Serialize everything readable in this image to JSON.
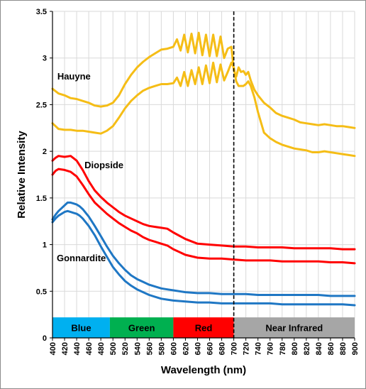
{
  "chart_data": {
    "type": "line",
    "xlabel": "Wavelength (nm)",
    "ylabel": "Relative Intensity",
    "xlim": [
      400,
      900
    ],
    "ylim": [
      0,
      3.5
    ],
    "x_ticks": [
      "400",
      "420",
      "440",
      "460",
      "480",
      "500",
      "520",
      "540",
      "560",
      "580",
      "600",
      "620",
      "640",
      "660",
      "680",
      "700",
      "720",
      "740",
      "760",
      "780",
      "800",
      "820",
      "840",
      "860",
      "880",
      "900"
    ],
    "y_ticks": [
      "0",
      "0.5",
      "1",
      "1.5",
      "2",
      "2.5",
      "3",
      "3.5"
    ],
    "grid": "horizontal and vertical",
    "vertical_marker": {
      "x": 700,
      "style": "dashed"
    },
    "bands": [
      {
        "label": "Blue",
        "start": 400,
        "end": 495,
        "color": "#00b0f0",
        "text_color": "#000000"
      },
      {
        "label": "Green",
        "start": 495,
        "end": 600,
        "color": "#00b050",
        "text_color": "#000000"
      },
      {
        "label": "Red",
        "start": 600,
        "end": 700,
        "color": "#ff0000",
        "text_color": "#000000"
      },
      {
        "label": "Near Infrared",
        "start": 700,
        "end": 900,
        "color": "#a6a6a6",
        "text_color": "#000000"
      }
    ],
    "band_y_range": [
      0,
      0.22
    ],
    "annotations": [
      {
        "text": "Hauyne",
        "x": 408,
        "y": 2.77
      },
      {
        "text": "Diopside",
        "x": 453,
        "y": 1.82
      },
      {
        "text": "Gonnardite",
        "x": 407,
        "y": 0.82
      }
    ],
    "series": [
      {
        "color": "#f5bd16",
        "x": [
          400,
          410,
          420,
          430,
          440,
          450,
          460,
          470,
          480,
          490,
          500,
          510,
          520,
          530,
          540,
          550,
          560,
          570,
          580,
          590,
          600,
          606,
          612,
          618,
          624,
          630,
          636,
          642,
          648,
          654,
          660,
          666,
          672,
          678,
          684,
          690,
          696,
          700,
          704,
          708,
          712,
          716,
          720,
          724,
          728,
          734,
          740,
          750,
          760,
          770,
          780,
          790,
          800,
          810,
          820,
          830,
          840,
          850,
          860,
          870,
          880,
          890,
          900
        ],
        "values": [
          2.67,
          2.62,
          2.6,
          2.57,
          2.56,
          2.54,
          2.52,
          2.49,
          2.48,
          2.49,
          2.52,
          2.6,
          2.72,
          2.82,
          2.9,
          2.96,
          3.01,
          3.05,
          3.09,
          3.1,
          3.12,
          3.2,
          3.08,
          3.25,
          3.06,
          3.26,
          3.05,
          3.27,
          3.03,
          3.25,
          3.02,
          3.25,
          3.02,
          3.23,
          3.0,
          3.1,
          3.12,
          2.87,
          2.8,
          2.9,
          2.85,
          2.86,
          2.82,
          2.85,
          2.76,
          2.66,
          2.6,
          2.52,
          2.47,
          2.41,
          2.38,
          2.36,
          2.34,
          2.31,
          2.3,
          2.29,
          2.28,
          2.29,
          2.28,
          2.27,
          2.27,
          2.26,
          2.25
        ]
      },
      {
        "color": "#f5bd16",
        "x": [
          400,
          410,
          420,
          430,
          440,
          450,
          460,
          470,
          480,
          490,
          500,
          510,
          520,
          530,
          540,
          550,
          560,
          570,
          580,
          590,
          600,
          606,
          612,
          618,
          624,
          630,
          636,
          642,
          648,
          654,
          660,
          666,
          672,
          678,
          684,
          690,
          696,
          700,
          704,
          708,
          712,
          716,
          720,
          724,
          728,
          734,
          740,
          750,
          760,
          770,
          780,
          790,
          800,
          810,
          820,
          830,
          840,
          850,
          860,
          870,
          880,
          890,
          900
        ],
        "values": [
          2.3,
          2.24,
          2.23,
          2.23,
          2.22,
          2.22,
          2.21,
          2.2,
          2.19,
          2.22,
          2.27,
          2.36,
          2.46,
          2.54,
          2.6,
          2.65,
          2.68,
          2.7,
          2.72,
          2.72,
          2.73,
          2.79,
          2.7,
          2.85,
          2.7,
          2.87,
          2.72,
          2.9,
          2.72,
          2.92,
          2.73,
          2.95,
          2.74,
          2.93,
          2.76,
          2.85,
          2.95,
          2.9,
          2.75,
          2.7,
          2.7,
          2.7,
          2.72,
          2.75,
          2.7,
          2.58,
          2.42,
          2.2,
          2.14,
          2.1,
          2.07,
          2.05,
          2.03,
          2.02,
          2.01,
          1.99,
          1.99,
          2.0,
          1.99,
          1.98,
          1.97,
          1.96,
          1.95
        ]
      },
      {
        "color": "#ff0000",
        "x": [
          400,
          405,
          410,
          420,
          430,
          440,
          450,
          460,
          470,
          480,
          490,
          500,
          510,
          520,
          530,
          540,
          550,
          560,
          570,
          580,
          590,
          600,
          620,
          640,
          660,
          680,
          700,
          720,
          740,
          760,
          780,
          800,
          820,
          840,
          860,
          880,
          900
        ],
        "values": [
          1.9,
          1.93,
          1.95,
          1.94,
          1.95,
          1.9,
          1.8,
          1.68,
          1.58,
          1.51,
          1.45,
          1.4,
          1.35,
          1.31,
          1.28,
          1.25,
          1.22,
          1.2,
          1.19,
          1.18,
          1.17,
          1.13,
          1.06,
          1.01,
          1.0,
          0.99,
          0.98,
          0.98,
          0.97,
          0.97,
          0.97,
          0.96,
          0.96,
          0.96,
          0.96,
          0.95,
          0.95
        ]
      },
      {
        "color": "#ff0000",
        "x": [
          400,
          405,
          410,
          420,
          430,
          440,
          450,
          460,
          470,
          480,
          490,
          500,
          510,
          520,
          530,
          540,
          550,
          560,
          570,
          580,
          590,
          600,
          620,
          640,
          660,
          680,
          700,
          720,
          740,
          760,
          780,
          800,
          820,
          840,
          860,
          880,
          900
        ],
        "values": [
          1.75,
          1.79,
          1.81,
          1.8,
          1.78,
          1.73,
          1.64,
          1.54,
          1.45,
          1.39,
          1.33,
          1.28,
          1.23,
          1.19,
          1.15,
          1.12,
          1.08,
          1.05,
          1.03,
          1.01,
          0.99,
          0.95,
          0.89,
          0.86,
          0.85,
          0.85,
          0.84,
          0.83,
          0.83,
          0.83,
          0.82,
          0.82,
          0.82,
          0.82,
          0.81,
          0.81,
          0.8
        ]
      },
      {
        "color": "#1f77c4",
        "x": [
          400,
          405,
          410,
          415,
          420,
          425,
          430,
          435,
          440,
          445,
          450,
          460,
          470,
          480,
          490,
          500,
          510,
          520,
          530,
          540,
          550,
          560,
          570,
          580,
          590,
          600,
          620,
          640,
          660,
          680,
          700,
          720,
          740,
          760,
          780,
          800,
          820,
          840,
          860,
          880,
          900
        ],
        "values": [
          1.27,
          1.32,
          1.36,
          1.39,
          1.42,
          1.45,
          1.45,
          1.44,
          1.43,
          1.41,
          1.38,
          1.3,
          1.2,
          1.09,
          0.98,
          0.88,
          0.8,
          0.73,
          0.67,
          0.63,
          0.6,
          0.57,
          0.55,
          0.53,
          0.52,
          0.51,
          0.49,
          0.48,
          0.48,
          0.47,
          0.47,
          0.47,
          0.46,
          0.46,
          0.46,
          0.46,
          0.46,
          0.46,
          0.45,
          0.45,
          0.45
        ]
      },
      {
        "color": "#1f77c4",
        "x": [
          400,
          405,
          410,
          415,
          420,
          425,
          430,
          435,
          440,
          445,
          450,
          460,
          470,
          480,
          490,
          500,
          510,
          520,
          530,
          540,
          550,
          560,
          570,
          580,
          590,
          600,
          620,
          640,
          660,
          680,
          700,
          720,
          740,
          760,
          780,
          800,
          820,
          840,
          860,
          880,
          900
        ],
        "values": [
          1.24,
          1.28,
          1.31,
          1.33,
          1.35,
          1.36,
          1.35,
          1.34,
          1.33,
          1.31,
          1.28,
          1.2,
          1.1,
          0.98,
          0.87,
          0.76,
          0.68,
          0.61,
          0.56,
          0.52,
          0.49,
          0.46,
          0.44,
          0.42,
          0.41,
          0.4,
          0.39,
          0.38,
          0.38,
          0.37,
          0.37,
          0.37,
          0.37,
          0.37,
          0.36,
          0.36,
          0.36,
          0.36,
          0.36,
          0.36,
          0.35
        ]
      }
    ]
  }
}
